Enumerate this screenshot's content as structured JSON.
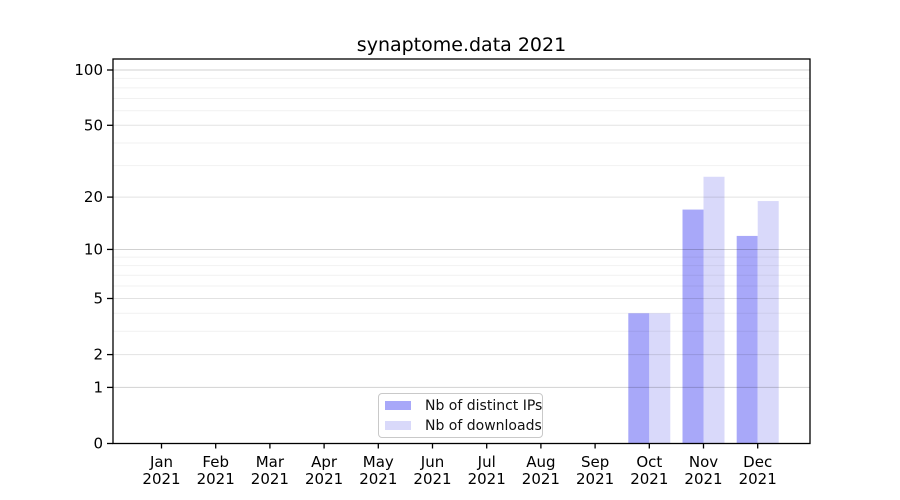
{
  "chart_data": {
    "type": "bar",
    "title": "synaptome.data 2021",
    "x_axis": {
      "categories": [
        "Jan",
        "Feb",
        "Mar",
        "Apr",
        "May",
        "Jun",
        "Jul",
        "Aug",
        "Sep",
        "Oct",
        "Nov",
        "Dec"
      ],
      "year_label": "2021"
    },
    "y_axis": {
      "scale": "symlog",
      "ylim": [
        0,
        115
      ],
      "ticks": [
        0,
        1,
        2,
        5,
        10,
        20,
        50,
        100
      ],
      "decade_gridlines": [
        1,
        10,
        100
      ],
      "minor_gridlines": [
        3,
        4,
        6,
        7,
        8,
        9,
        30,
        40,
        60,
        70,
        80,
        90
      ]
    },
    "series": [
      {
        "name": "Nb of distinct IPs",
        "color": "#a8a8f9",
        "values": [
          0,
          0,
          0,
          0,
          0,
          0,
          0,
          0,
          0,
          4,
          17,
          12
        ]
      },
      {
        "name": "Nb of downloads",
        "color": "#d9d9fa",
        "values": [
          0,
          0,
          0,
          0,
          0,
          0,
          0,
          0,
          0,
          4,
          26,
          19
        ]
      }
    ],
    "grid": "horizontal-only",
    "legend_position": "lower center"
  }
}
